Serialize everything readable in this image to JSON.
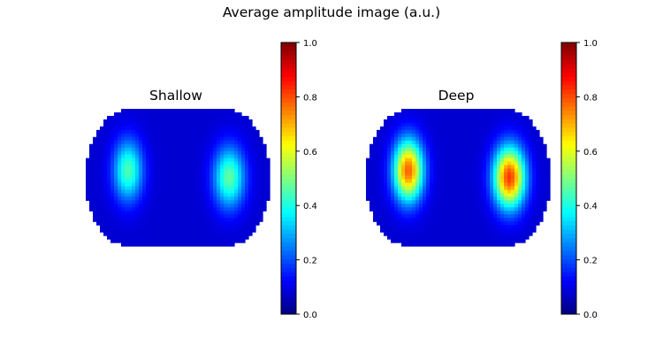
{
  "figure": {
    "title": "Average amplitude image (a.u.)"
  },
  "chart_data": [
    {
      "type": "heatmap",
      "title": "Shallow",
      "colormap": "jet",
      "value_range": [
        0,
        1
      ],
      "colorbar_ticks": [
        "0.0",
        "0.2",
        "0.4",
        "0.6",
        "0.8",
        "1.0"
      ],
      "axes": "off",
      "blobs": [
        {
          "side": "left",
          "peak_value": 0.45
        },
        {
          "side": "right",
          "peak_value": 0.47
        }
      ],
      "background_value": 0.08
    },
    {
      "type": "heatmap",
      "title": "Deep",
      "colormap": "jet",
      "value_range": [
        0,
        1
      ],
      "colorbar_ticks": [
        "0.0",
        "0.2",
        "0.4",
        "0.6",
        "0.8",
        "1.0"
      ],
      "axes": "off",
      "blobs": [
        {
          "side": "left",
          "peak_value": 0.78
        },
        {
          "side": "right",
          "peak_value": 0.82
        }
      ],
      "background_value": 0.08
    }
  ]
}
